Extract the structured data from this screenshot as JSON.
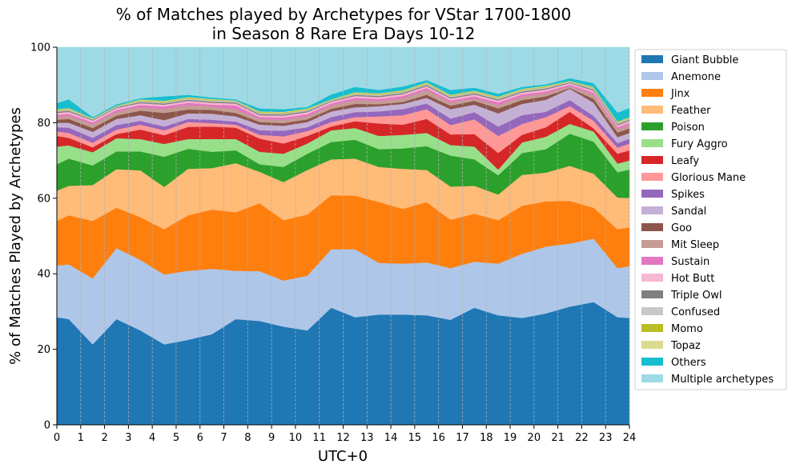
{
  "chart_data": {
    "type": "area",
    "stacked": true,
    "title_line1": "% of Matches played by Archetypes for VStar 1700-1800",
    "title_line2": "in Season 8 Rare Era Days 10-12",
    "xlabel": "UTC+0",
    "ylabel": "% of Matches Played by Archetypes",
    "xlim": [
      0,
      24
    ],
    "ylim": [
      0,
      100
    ],
    "x_ticks": [
      0,
      1,
      2,
      3,
      4,
      5,
      6,
      7,
      8,
      9,
      10,
      11,
      12,
      13,
      14,
      15,
      16,
      17,
      18,
      19,
      20,
      21,
      22,
      23,
      24
    ],
    "y_ticks": [
      0,
      20,
      40,
      60,
      80,
      100
    ],
    "grid": "vertical dashed",
    "legend_position": "right",
    "x": [
      0,
      0.5,
      1.5,
      2.5,
      3.5,
      4.5,
      5.5,
      6.5,
      7.5,
      8.5,
      9.5,
      10.5,
      11.5,
      12.5,
      13.5,
      14.5,
      15.5,
      16.5,
      17.5,
      18.5,
      19.5,
      20.5,
      21.5,
      22.5,
      23.5,
      24
    ],
    "series": [
      {
        "name": "Giant Bubble",
        "color": "#1f77b4",
        "values": [
          28.5,
          28.0,
          21.3,
          28.0,
          25.0,
          21.3,
          22.5,
          24.0,
          28.0,
          27.5,
          26.0,
          25.0,
          31.0,
          28.5,
          29.2,
          29.2,
          29.0,
          27.8,
          31.0,
          29.0,
          28.3,
          29.5,
          31.3,
          32.5,
          28.5,
          28.3
        ]
      },
      {
        "name": "Anemone",
        "color": "#aec7e8",
        "values": [
          13.7,
          14.5,
          17.5,
          18.8,
          18.7,
          18.5,
          18.3,
          17.3,
          12.8,
          13.2,
          12.2,
          14.5,
          15.5,
          18.0,
          13.7,
          13.5,
          14.0,
          13.7,
          12.2,
          13.7,
          17.0,
          17.7,
          16.7,
          16.8,
          13.0,
          13.7
        ]
      },
      {
        "name": "Jinx",
        "color": "#ff7f0e",
        "values": [
          11.8,
          13.0,
          15.2,
          10.7,
          11.3,
          12.0,
          14.7,
          15.7,
          15.5,
          18.0,
          16.0,
          16.2,
          14.3,
          14.2,
          16.1,
          14.5,
          16.0,
          12.8,
          12.7,
          11.5,
          12.7,
          12.0,
          11.3,
          8.2,
          10.3,
          10.3
        ]
      },
      {
        "name": "Feather",
        "color": "#ffbb78",
        "values": [
          8.0,
          7.8,
          9.5,
          10.2,
          12.4,
          11.2,
          12.3,
          11.0,
          13.0,
          8.3,
          10.1,
          11.8,
          9.5,
          9.8,
          9.3,
          10.6,
          8.5,
          8.8,
          7.4,
          6.8,
          8.2,
          7.6,
          9.3,
          9.0,
          8.4,
          7.8
        ]
      },
      {
        "name": "Poison",
        "color": "#2ca02c",
        "values": [
          7.0,
          7.2,
          5.2,
          4.7,
          5.0,
          8.0,
          5.3,
          4.3,
          3.4,
          2.0,
          4.0,
          4.3,
          4.6,
          5.0,
          4.7,
          5.4,
          6.3,
          8.2,
          7.0,
          5.1,
          5.8,
          6.2,
          8.5,
          8.5,
          6.7,
          7.5
        ]
      },
      {
        "name": "Fury Aggro",
        "color": "#98df8a",
        "values": [
          4.7,
          3.5,
          3.5,
          3.5,
          3.3,
          3.4,
          2.6,
          3.4,
          3.0,
          3.3,
          3.5,
          2.7,
          3.1,
          3.1,
          3.5,
          3.6,
          3.5,
          2.8,
          3.4,
          1.5,
          2.8,
          3.3,
          2.6,
          2.7,
          2.3,
          2.4
        ]
      },
      {
        "name": "Leafy",
        "color": "#d62728",
        "values": [
          2.8,
          2.0,
          1.3,
          1.1,
          2.5,
          2.3,
          3.2,
          3.3,
          3.0,
          3.5,
          2.7,
          2.0,
          1.0,
          1.8,
          3.3,
          2.7,
          3.7,
          2.8,
          3.3,
          4.4,
          2.0,
          2.5,
          3.2,
          0.8,
          2.6,
          2.7
        ]
      },
      {
        "name": "Glorious Mane",
        "color": "#ff9896",
        "values": [
          1.2,
          1.3,
          1.2,
          1.2,
          1.3,
          1.3,
          1.3,
          0.9,
          0.8,
          1.0,
          1.9,
          1.3,
          1.2,
          1.1,
          1.9,
          2.5,
          2.6,
          2.5,
          3.9,
          4.5,
          2.9,
          2.7,
          1.5,
          2.0,
          1.6,
          1.8
        ]
      },
      {
        "name": "Spikes",
        "color": "#9467bd",
        "values": [
          1.1,
          1.4,
          1.3,
          1.2,
          1.0,
          1.0,
          0.8,
          0.9,
          0.8,
          1.2,
          1.5,
          1.0,
          1.3,
          1.3,
          1.3,
          1.6,
          1.5,
          1.7,
          1.9,
          2.5,
          2.3,
          1.4,
          1.6,
          1.3,
          1.2,
          1.3
        ]
      },
      {
        "name": "Sandal",
        "color": "#c5b0d5",
        "values": [
          1.2,
          1.3,
          1.6,
          1.6,
          1.5,
          1.7,
          1.5,
          1.6,
          1.4,
          1.5,
          1.3,
          1.4,
          1.5,
          1.3,
          1.4,
          1.4,
          1.5,
          2.5,
          2.0,
          3.5,
          3.0,
          3.2,
          3.0,
          3.5,
          1.6,
          1.5
        ]
      },
      {
        "name": "Goo",
        "color": "#8c564b",
        "values": [
          0.8,
          1.0,
          1.0,
          0.9,
          1.2,
          1.9,
          1.0,
          1.0,
          0.9,
          0.7,
          0.7,
          0.7,
          0.7,
          0.9,
          0.5,
          0.5,
          0.8,
          0.9,
          1.0,
          1.3,
          1.0,
          0.9,
          0.2,
          1.0,
          1.2,
          1.2
        ]
      },
      {
        "name": "Mit Sleep",
        "color": "#c49c94",
        "values": [
          0.8,
          0.9,
          1.0,
          1.0,
          0.9,
          1.0,
          1.2,
          0.9,
          1.0,
          0.8,
          0.9,
          0.8,
          0.9,
          1.0,
          0.9,
          1.0,
          1.3,
          0.9,
          0.7,
          0.9,
          0.9,
          0.8,
          0.5,
          1.2,
          0.9,
          1.0
        ]
      },
      {
        "name": "Sustain",
        "color": "#e377c2",
        "values": [
          0.5,
          0.5,
          0.5,
          0.5,
          0.6,
          0.7,
          0.6,
          0.5,
          1.0,
          0.5,
          0.6,
          0.6,
          0.5,
          0.6,
          0.5,
          0.6,
          0.5,
          0.5,
          0.5,
          0.7,
          0.6,
          0.5,
          0.4,
          0.5,
          0.5,
          0.5
        ]
      },
      {
        "name": "Hot Butt",
        "color": "#f7b6d2",
        "values": [
          0.5,
          0.5,
          0.5,
          0.5,
          0.5,
          0.5,
          0.5,
          0.5,
          0.5,
          0.5,
          0.5,
          0.5,
          0.5,
          0.5,
          0.5,
          0.5,
          0.5,
          0.5,
          0.5,
          0.5,
          0.5,
          0.5,
          0.4,
          0.5,
          0.5,
          0.5
        ]
      },
      {
        "name": "Triple Owl",
        "color": "#7f7f7f",
        "values": [
          0.3,
          0.3,
          0.2,
          0.2,
          0.3,
          0.3,
          0.3,
          0.3,
          0.3,
          0.3,
          0.3,
          0.3,
          0.2,
          0.3,
          0.3,
          0.3,
          0.3,
          0.3,
          0.3,
          0.3,
          0.3,
          0.3,
          0.2,
          0.3,
          0.3,
          0.3
        ]
      },
      {
        "name": "Confused",
        "color": "#c7c7c7",
        "values": [
          0.3,
          0.3,
          0.2,
          0.2,
          0.3,
          0.3,
          0.3,
          0.3,
          0.3,
          0.3,
          0.3,
          0.3,
          0.2,
          0.3,
          0.3,
          0.3,
          0.3,
          0.3,
          0.3,
          0.3,
          0.3,
          0.3,
          0.2,
          0.3,
          0.3,
          0.3
        ]
      },
      {
        "name": "Momo",
        "color": "#bcbd22",
        "values": [
          0.2,
          0.2,
          0.1,
          0.1,
          0.2,
          0.2,
          0.2,
          0.2,
          0.1,
          0.2,
          0.2,
          0.2,
          0.1,
          0.2,
          0.2,
          0.2,
          0.2,
          0.2,
          0.2,
          0.2,
          0.2,
          0.2,
          0.1,
          0.2,
          0.2,
          0.2
        ]
      },
      {
        "name": "Topaz",
        "color": "#dbdb8d",
        "values": [
          0.2,
          0.2,
          0.1,
          0.1,
          0.2,
          0.2,
          0.2,
          0.2,
          0.1,
          0.2,
          0.2,
          0.2,
          0.1,
          0.2,
          0.2,
          0.2,
          0.2,
          0.2,
          0.2,
          0.2,
          0.2,
          0.2,
          0.1,
          0.2,
          0.2,
          0.2
        ]
      },
      {
        "name": "Others",
        "color": "#17becf",
        "values": [
          1.6,
          2.3,
          0.3,
          0.4,
          0.3,
          1.2,
          0.6,
          0.4,
          0.3,
          0.8,
          0.7,
          0.4,
          1.3,
          1.4,
          0.9,
          1.0,
          0.6,
          1.3,
          0.8,
          0.8,
          0.5,
          0.4,
          0.7,
          1.0,
          2.4,
          2.4
        ]
      },
      {
        "name": "Multiple archetypes",
        "color": "#9edae5",
        "values": [
          15.8,
          15.0,
          19.5,
          18.9,
          15.1,
          15.5,
          14.2,
          14.8,
          14.0,
          17.0,
          17.7,
          17.5,
          13.7,
          14.1,
          12.9,
          12.1,
          10.6,
          12.8,
          12.0,
          13.2,
          13.9,
          13.3,
          9.0,
          11.2,
          17.4,
          17.6
        ]
      }
    ]
  }
}
